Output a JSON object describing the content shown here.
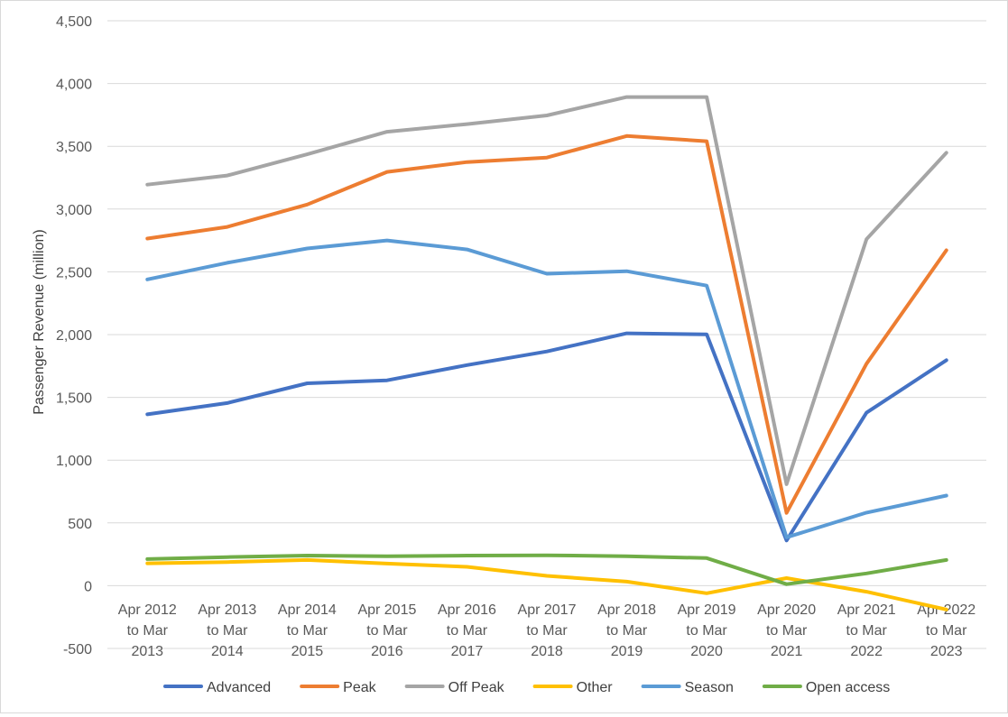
{
  "chart_data": {
    "type": "line",
    "title": "",
    "xlabel": "",
    "ylabel": "Passenger Revenue (million)",
    "ylim": [
      -500,
      4500
    ],
    "yticks": [
      -500,
      0,
      500,
      1000,
      1500,
      2000,
      2500,
      3000,
      3500,
      4000,
      4500
    ],
    "ytick_labels": [
      "-500",
      "0",
      "500",
      "1,000",
      "1,500",
      "2,000",
      "2,500",
      "3,000",
      "3,500",
      "4,000",
      "4,500"
    ],
    "grid": "horizontal",
    "legend_position": "bottom",
    "categories": [
      [
        "Apr 2012",
        "to Mar",
        "2013"
      ],
      [
        "Apr 2013",
        "to Mar",
        "2014"
      ],
      [
        "Apr 2014",
        "to Mar",
        "2015"
      ],
      [
        "Apr 2015",
        "to Mar",
        "2016"
      ],
      [
        "Apr 2016",
        "to Mar",
        "2017"
      ],
      [
        "Apr 2017",
        "to Mar",
        "2018"
      ],
      [
        "Apr 2018",
        "to Mar",
        "2019"
      ],
      [
        "Apr 2019",
        "to Mar",
        "2020"
      ],
      [
        "Apr 2020",
        "to Mar",
        "2021"
      ],
      [
        "Apr 2021",
        "to Mar",
        "2022"
      ],
      [
        "Apr 2022",
        "to Mar",
        "2023"
      ]
    ],
    "series": [
      {
        "name": "Advanced",
        "color": "#4472c4",
        "values": [
          1365,
          1455,
          1612,
          1636,
          1757,
          1866,
          2010,
          2002,
          360,
          1378,
          1796
        ]
      },
      {
        "name": "Peak",
        "color": "#ed7d31",
        "values": [
          2765,
          2858,
          3036,
          3296,
          3374,
          3410,
          3582,
          3540,
          580,
          1768,
          2672
        ]
      },
      {
        "name": "Off Peak",
        "color": "#a5a5a5",
        "values": [
          3195,
          3267,
          3436,
          3616,
          3677,
          3746,
          3892,
          3892,
          808,
          2760,
          3448
        ]
      },
      {
        "name": "Other",
        "color": "#ffc000",
        "values": [
          178,
          188,
          205,
          176,
          150,
          78,
          32,
          -60,
          60,
          -48,
          -190
        ]
      },
      {
        "name": "Season",
        "color": "#5b9bd5",
        "values": [
          2440,
          2572,
          2686,
          2750,
          2678,
          2485,
          2505,
          2390,
          385,
          582,
          718
        ]
      },
      {
        "name": "Open access",
        "color": "#70ad47",
        "values": [
          212,
          228,
          240,
          235,
          240,
          242,
          235,
          220,
          12,
          98,
          205
        ]
      }
    ]
  }
}
